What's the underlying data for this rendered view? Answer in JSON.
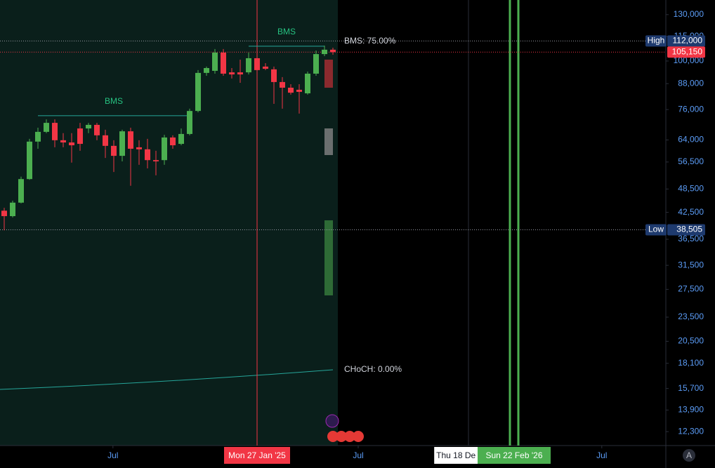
{
  "chart_data": {
    "type": "candlestick",
    "log_scale": true,
    "up_color": "#4caf50",
    "down_color": "#f23645",
    "xlim": [
      -0.5,
      78.5
    ],
    "ylim": [
      11370,
      141200
    ],
    "yticks": [
      {
        "value": 130000,
        "label": "130,000"
      },
      {
        "value": 115000,
        "label": "115,000"
      },
      {
        "value": 100000,
        "label": "100,000"
      },
      {
        "value": 88000,
        "label": "88,000"
      },
      {
        "value": 76000,
        "label": "76,000"
      },
      {
        "value": 64000,
        "label": "64,000"
      },
      {
        "value": 56500,
        "label": "56,500"
      },
      {
        "value": 48500,
        "label": "48,500"
      },
      {
        "value": 42500,
        "label": "42,500"
      },
      {
        "value": 36500,
        "label": "36,500"
      },
      {
        "value": 31500,
        "label": "31,500"
      },
      {
        "value": 27500,
        "label": "27,500"
      },
      {
        "value": 23500,
        "label": "23,500"
      },
      {
        "value": 20500,
        "label": "20,500"
      },
      {
        "value": 18100,
        "label": "18,100"
      },
      {
        "value": 15700,
        "label": "15,700"
      },
      {
        "value": 13900,
        "label": "13,900"
      },
      {
        "value": 12300,
        "label": "12,300"
      }
    ],
    "xticks": [
      {
        "value": 12.9,
        "label": "Jul"
      },
      {
        "value": 42,
        "label": "Jul"
      },
      {
        "value": 70.9,
        "label": "Jul"
      }
    ],
    "open": [
      42900,
      41600,
      44900,
      51300,
      63400,
      67000,
      70500,
      63900,
      63100,
      68300,
      68300,
      69700,
      65700,
      61900,
      58500,
      67200,
      61400,
      60700,
      57100,
      57100,
      64900,
      62600,
      66200,
      75400,
      93500,
      94600,
      104900,
      93800,
      93800,
      93800,
      101600,
      96900,
      95400,
      88800,
      86000,
      85000,
      83300,
      93100,
      104000,
      106600
    ],
    "high": [
      43600,
      45400,
      52000,
      64400,
      68600,
      71900,
      71900,
      66500,
      66500,
      70500,
      70500,
      70500,
      67800,
      63900,
      67800,
      68600,
      63900,
      64400,
      60200,
      65900,
      65700,
      68300,
      76400,
      95000,
      96900,
      107000,
      107000,
      96100,
      100800,
      104900,
      104900,
      98800,
      96900,
      91300,
      87700,
      87700,
      94200,
      106100,
      109100,
      107800
    ],
    "low": [
      38400,
      41300,
      44700,
      51100,
      60900,
      66500,
      61400,
      61400,
      56300,
      60200,
      66500,
      63900,
      57800,
      53400,
      56700,
      49400,
      55600,
      54500,
      52400,
      55600,
      60900,
      62100,
      65700,
      74800,
      92000,
      93100,
      92000,
      90600,
      88400,
      92700,
      93100,
      95000,
      78500,
      76400,
      82700,
      74300,
      82700,
      92000,
      102800,
      103600
    ],
    "close": [
      41600,
      44900,
      51300,
      63400,
      67000,
      70500,
      63900,
      63100,
      62100,
      62600,
      69700,
      65700,
      61900,
      58500,
      67200,
      60900,
      60700,
      57100,
      56700,
      64900,
      62100,
      66200,
      75400,
      93500,
      96100,
      104900,
      93100,
      92700,
      92700,
      101600,
      95000,
      95700,
      88800,
      86000,
      83600,
      84000,
      93100,
      104000,
      106600,
      105150
    ],
    "last_label": "105,150",
    "levels": {
      "labels": [
        "High",
        "Low"
      ],
      "values": [
        112000,
        38505
      ],
      "value_labels": [
        "112,000",
        "38,505"
      ]
    },
    "bms": {
      "label": "BMS",
      "values": [
        73400,
        108700
      ],
      "from": [
        4,
        29
      ],
      "to": [
        22,
        38
      ]
    },
    "annotations": [
      "BMS: 75.00%",
      "CHoCH: 0.00%"
    ],
    "crosshair": {
      "value": 30,
      "label": "Mon 27 Jan '25"
    },
    "date_tag": {
      "value": 53.6,
      "label": "Thu 18 De"
    },
    "vlines": [
      60,
      61
    ],
    "vline_label": {
      "value": 60.5,
      "label": "Sun 22 Feb '26"
    },
    "scale_button": "A"
  }
}
